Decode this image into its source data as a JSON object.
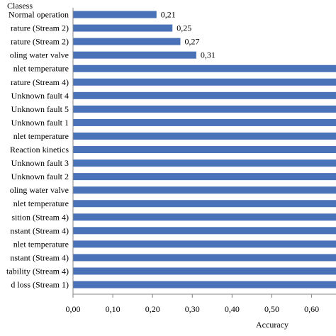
{
  "chart_data": {
    "type": "bar",
    "orientation": "horizontal",
    "title": "Clasess",
    "xlabel": "Accuracy",
    "ylabel": "",
    "xlim": [
      0,
      0.65
    ],
    "x_ticks": [
      "0,00",
      "0,10",
      "0,20",
      "0,30",
      "0,40",
      "0,50",
      "0,60"
    ],
    "grid": false,
    "legend": "none",
    "bar_color": "#4a72b8",
    "categories": [
      "Normal operation",
      "rature (Stream 2)",
      "rature (Stream 2)",
      "oling water valve",
      "nlet temperature",
      "rature (Stream 4)",
      "Unknown fault 4",
      "Unknown fault 5",
      "Unknown fault 1",
      "nlet temperature",
      "Reaction kinetics",
      "Unknown fault 3",
      "Unknown fault 2",
      "oling water valve",
      "nlet temperature",
      "sition (Stream 4)",
      "nstant (Stream 4)",
      "nlet temperature",
      "nstant (Stream 4)",
      "tability (Stream 4)",
      "d loss (Stream 1)"
    ],
    "values": [
      0.21,
      0.25,
      0.27,
      0.31,
      0.68,
      0.68,
      0.68,
      0.68,
      0.68,
      0.68,
      0.68,
      0.68,
      0.68,
      0.68,
      0.68,
      0.68,
      0.68,
      0.68,
      0.68,
      0.68,
      0.68
    ],
    "data_labels": [
      "0,21",
      "0,25",
      "0,27",
      "0,31",
      "",
      "",
      "",
      "",
      "",
      "",
      "",
      "",
      "",
      "",
      "",
      "",
      "",
      "",
      "",
      "",
      ""
    ]
  }
}
